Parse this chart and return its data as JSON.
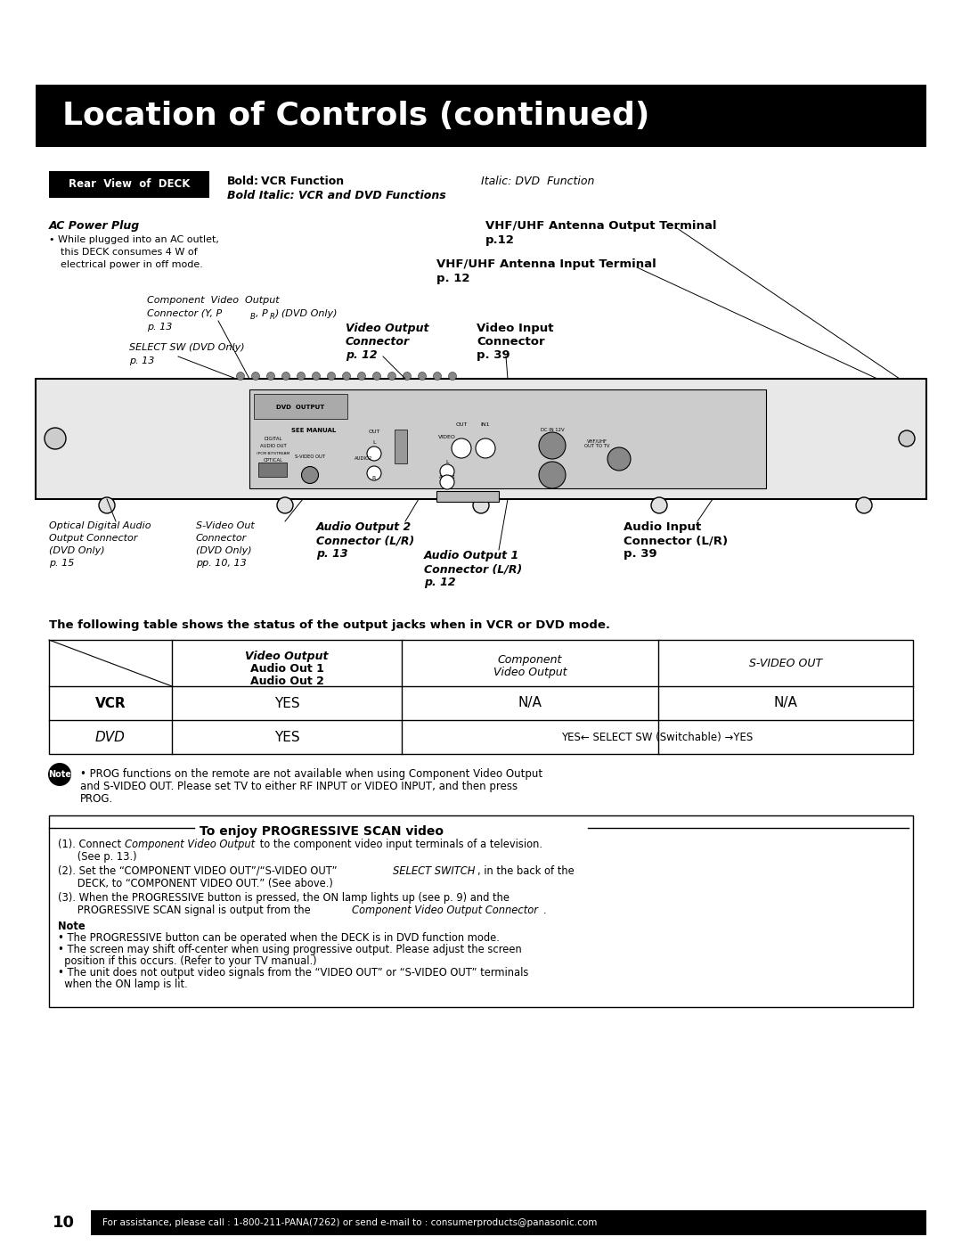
{
  "page_bg": "#ffffff",
  "title_bg": "#000000",
  "title_text": "Location of Controls (continued)",
  "title_color": "#ffffff",
  "page_number": "10",
  "footer_text": "For assistance, please call : 1-800-211-PANA(7262) or send e-mail to : consumerproducts@panasonic.com",
  "footer_bg": "#000000",
  "footer_color": "#ffffff",
  "rear_view_label": "Rear  View  of  DECK",
  "bold_label": "Bold:",
  "vcr_function": "VCR Function",
  "italic_dvd": "Italic: DVD  Function",
  "bold_italic_note": "Bold Italic: VCR and DVD Functions",
  "ac_power_title": "AC Power Plug",
  "ac_bullet": "• While plugged into an AC outlet,",
  "ac_line2": "this DECK consumes 4 W of",
  "ac_line3": "electrical power in off mode.",
  "vhf_output_line1": "VHF/UHF Antenna Output Terminal",
  "vhf_output_line2": "p.12",
  "vhf_input_line1": "VHF/UHF Antenna Input Terminal",
  "vhf_input_line2": "p. 12",
  "comp_line1": "Component  Video  Output",
  "comp_line2a": "Connector (Y, P",
  "comp_line2b": "B",
  "comp_line2c": ", P",
  "comp_line2d": "R",
  "comp_line2e": ") (DVD Only)",
  "comp_line3": "p. 13",
  "select_line1": "SELECT SW (DVD Only)",
  "select_line2": "p. 13",
  "vo_line1": "Video Output",
  "vo_line2": "Connector",
  "vo_line3": "p. 12",
  "vi_line1": "Video Input",
  "vi_line2": "Connector",
  "vi_line3": "p. 39",
  "optical_l1": "Optical Digital Audio",
  "optical_l2": "Output Connector",
  "optical_l3": "(DVD Only)",
  "optical_l4": "p. 15",
  "svideo_l1": "S-Video Out",
  "svideo_l2": "Connector",
  "svideo_l3": "(DVD Only)",
  "svideo_l4": "pp. 10, 13",
  "ao2_l1": "Audio Output 2",
  "ao2_l2": "Connector (L/R)",
  "ao2_l3": "p. 13",
  "ao1_l1": "Audio Output 1",
  "ao1_l2": "Connector (L/R)",
  "ao1_l3": "p. 12",
  "ai_l1": "Audio Input",
  "ai_l2": "Connector (L/R)",
  "ai_l3": "p. 39",
  "table_title": "The following table shows the status of the output jacks when in VCR or DVD mode.",
  "th1a": "Video Output",
  "th1b": "Audio Out 1",
  "th1c": "Audio Out 2",
  "th2a": "Component",
  "th2b": "Video Output",
  "th3": "S-VIDEO OUT",
  "row1_label": "VCR",
  "row1_c1": "YES",
  "row1_c2": "N/A",
  "row1_c3": "N/A",
  "row2_label": "DVD",
  "row2_c1": "YES",
  "row2_c2": "YES← SELECT SW (Switchable) →YES",
  "note_text1": " U+2022  PROG functions on the remote are not available when using Component Video Output",
  "note_text2": "and S-VIDEO OUT. Please set TV to either RF INPUT or VIDEO INPUT, and then press",
  "note_text3": "PROG.",
  "prog_title": "To enjoy PROGRESSIVE SCAN video",
  "p1_a": "(1). Connect ",
  "p1_b": "Component Video Output",
  "p1_c": " to the component video input terminals of a television.",
  "p1_d": "      (See p. 13.)",
  "p2_a": "(2). Set the “COMPONENT VIDEO OUT”/“S-VIDEO OUT” ",
  "p2_b": "SELECT SWITCH",
  "p2_c": ", in the back of the",
  "p2_d": "      DECK, to “COMPONENT VIDEO OUT.” (See above.)",
  "p3_a": "(3). When the PROGRESSIVE button is pressed, the ON lamp lights up (see p. 9) and the",
  "p3_b": "      PROGRESSIVE SCAN signal is output from the ",
  "p3_c": "Component Video Output Connector",
  "p3_d": ".",
  "pnote_title": "Note",
  "pn1": "• The PROGRESSIVE button can be operated when the DECK is in DVD function mode.",
  "pn2a": "• The screen may shift off-center when using progressive output. Please adjust the screen",
  "pn2b": "  position if this occurs. (Refer to your TV manual.)",
  "pn3a": "• The unit does not output video signals from the “VIDEO OUT” or “S-VIDEO OUT” terminals",
  "pn3b": "  when the ON lamp is lit."
}
